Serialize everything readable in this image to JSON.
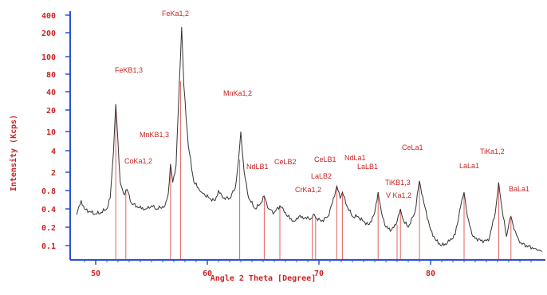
{
  "chart_data": {
    "type": "line",
    "xlabel": "Angle 2 Theta [Degree]",
    "ylabel": "Intensity (Kcps)",
    "x_ticks": [
      "50",
      "60",
      "70",
      "80"
    ],
    "y_ticks": [
      "400",
      "200",
      "100",
      "80",
      "40",
      "20",
      "10",
      "4",
      "2",
      "0.8",
      "0.4",
      "0.2",
      "0.1"
    ],
    "xlim": [
      48,
      90
    ],
    "grid": false,
    "spectrum": [
      [
        48.3,
        0.32
      ],
      [
        48.7,
        0.55
      ],
      [
        49.0,
        0.4
      ],
      [
        49.5,
        0.36
      ],
      [
        50.0,
        0.33
      ],
      [
        50.5,
        0.35
      ],
      [
        51.0,
        0.4
      ],
      [
        51.3,
        0.6
      ],
      [
        51.6,
        4.0
      ],
      [
        51.8,
        25
      ],
      [
        52.0,
        6.0
      ],
      [
        52.2,
        1.2
      ],
      [
        52.5,
        0.7
      ],
      [
        52.8,
        0.85
      ],
      [
        53.2,
        0.5
      ],
      [
        53.8,
        0.42
      ],
      [
        54.5,
        0.4
      ],
      [
        55.0,
        0.45
      ],
      [
        55.5,
        0.4
      ],
      [
        56.2,
        0.45
      ],
      [
        56.5,
        0.7
      ],
      [
        56.7,
        2.6
      ],
      [
        56.9,
        1.2
      ],
      [
        57.2,
        2.5
      ],
      [
        57.5,
        60
      ],
      [
        57.7,
        250
      ],
      [
        57.9,
        50
      ],
      [
        58.3,
        5.0
      ],
      [
        58.8,
        1.2
      ],
      [
        59.5,
        0.75
      ],
      [
        60.2,
        0.6
      ],
      [
        60.7,
        0.55
      ],
      [
        61.0,
        0.8
      ],
      [
        61.4,
        0.6
      ],
      [
        62.0,
        0.6
      ],
      [
        62.5,
        0.9
      ],
      [
        62.8,
        3.0
      ],
      [
        63.0,
        10
      ],
      [
        63.3,
        2.0
      ],
      [
        63.7,
        0.6
      ],
      [
        64.3,
        0.4
      ],
      [
        64.8,
        0.5
      ],
      [
        65.1,
        0.65
      ],
      [
        65.5,
        0.4
      ],
      [
        66.0,
        0.35
      ],
      [
        66.5,
        0.45
      ],
      [
        66.8,
        0.4
      ],
      [
        67.2,
        0.3
      ],
      [
        67.8,
        0.25
      ],
      [
        68.2,
        0.3
      ],
      [
        68.7,
        0.28
      ],
      [
        69.3,
        0.28
      ],
      [
        69.6,
        0.32
      ],
      [
        69.8,
        0.28
      ],
      [
        70.2,
        0.25
      ],
      [
        70.8,
        0.3
      ],
      [
        71.2,
        0.5
      ],
      [
        71.6,
        1.0
      ],
      [
        71.9,
        0.6
      ],
      [
        72.1,
        0.75
      ],
      [
        72.5,
        0.45
      ],
      [
        73.0,
        0.3
      ],
      [
        73.5,
        0.3
      ],
      [
        74.0,
        0.25
      ],
      [
        74.5,
        0.22
      ],
      [
        75.0,
        0.35
      ],
      [
        75.3,
        0.75
      ],
      [
        75.6,
        0.35
      ],
      [
        76.0,
        0.2
      ],
      [
        76.5,
        0.18
      ],
      [
        76.9,
        0.22
      ],
      [
        77.3,
        0.4
      ],
      [
        77.6,
        0.25
      ],
      [
        78.0,
        0.2
      ],
      [
        78.6,
        0.35
      ],
      [
        79.0,
        1.3
      ],
      [
        79.4,
        0.5
      ],
      [
        80.0,
        0.18
      ],
      [
        80.5,
        0.12
      ],
      [
        81.0,
        0.1
      ],
      [
        81.5,
        0.11
      ],
      [
        82.2,
        0.15
      ],
      [
        82.7,
        0.45
      ],
      [
        83.0,
        0.75
      ],
      [
        83.3,
        0.3
      ],
      [
        83.8,
        0.14
      ],
      [
        84.5,
        0.12
      ],
      [
        85.2,
        0.12
      ],
      [
        85.8,
        0.35
      ],
      [
        86.1,
        1.2
      ],
      [
        86.4,
        0.4
      ],
      [
        86.8,
        0.14
      ],
      [
        87.0,
        0.22
      ],
      [
        87.2,
        0.3
      ],
      [
        87.5,
        0.18
      ],
      [
        88.0,
        0.11
      ],
      [
        88.6,
        0.1
      ],
      [
        89.2,
        0.09
      ],
      [
        90.0,
        0.08
      ]
    ],
    "peaks": [
      {
        "label": "FeKB1,3",
        "x": 51.8
      },
      {
        "label": "CoKa1,2",
        "x": 52.7
      },
      {
        "label": "MnKB1,3",
        "x": 56.7
      },
      {
        "label": "FeKa1,2",
        "x": 57.6
      },
      {
        "label": "MnKa1,2",
        "x": 62.9
      },
      {
        "label": "NdLB1",
        "x": 65.1
      },
      {
        "label": "CeLB2",
        "x": 66.5
      },
      {
        "label": "CrKa1,2",
        "x": 69.4
      },
      {
        "label": "LaLB2",
        "x": 69.7
      },
      {
        "label": "CeLB1",
        "x": 71.6
      },
      {
        "label": "NdLa1",
        "x": 72.1
      },
      {
        "label": "LaLB1",
        "x": 75.3
      },
      {
        "label": "TiKB1,3",
        "x": 77.0
      },
      {
        "label": "V Ka1,2",
        "x": 77.3
      },
      {
        "label": "CeLa1",
        "x": 79.0
      },
      {
        "label": "LaLa1",
        "x": 83.0
      },
      {
        "label": "TiKa1,2",
        "x": 86.1
      },
      {
        "label": "BaLa1",
        "x": 87.2
      }
    ],
    "colors": {
      "axis": "#2a4fd8",
      "text": "#cc2222",
      "peak_line": "#e26060",
      "curve": "#333333",
      "background": "#ffffff"
    }
  }
}
